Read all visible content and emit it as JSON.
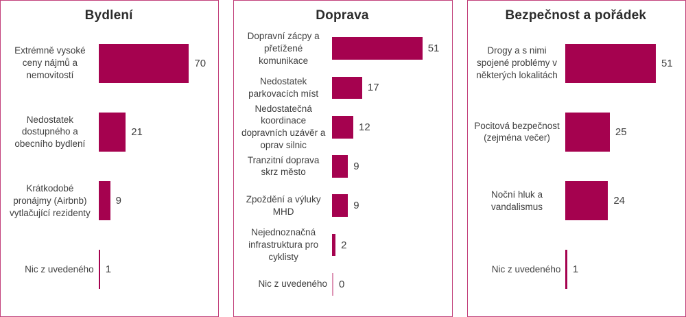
{
  "colors": {
    "bar": "#A5024F",
    "zero_bar": "#DD93B4",
    "panel_border": "#C2417B"
  },
  "chart_data": [
    {
      "type": "bar",
      "orientation": "horizontal",
      "title": "Bydlení",
      "categories": [
        "Extrémně vysoké ceny nájmů a nemovitostí",
        "Nedostatek dostupného a obecního bydlení",
        "Krátkodobé pronájmy (Airbnb) vytlačující rezidenty",
        "Nic z uvedeného"
      ],
      "values": [
        70,
        21,
        9,
        1
      ],
      "value_labels": true,
      "grid": false,
      "legend": false,
      "xlim": [
        0,
        70
      ]
    },
    {
      "type": "bar",
      "orientation": "horizontal",
      "title": "Doprava",
      "categories": [
        "Dopravní zácpy a přetížené komunikace",
        "Nedostatek parkovacích míst",
        "Nedostatečná koordinace dopravních uzávěr a oprav silnic",
        "Tranzitní doprava skrz město",
        "Zpoždění a výluky MHD",
        "Nejednoznačná infrastruktura pro cyklisty",
        "Nic z uvedeného"
      ],
      "values": [
        51,
        17,
        12,
        9,
        9,
        2,
        0
      ],
      "value_labels": true,
      "grid": false,
      "legend": false,
      "xlim": [
        0,
        51
      ]
    },
    {
      "type": "bar",
      "orientation": "horizontal",
      "title": "Bezpečnost a pořádek",
      "categories": [
        "Drogy a s nimi spojené problémy v některých lokalitách",
        "Pocitová bezpečnost (zejména večer)",
        "Noční hluk a vandalismus",
        "Nic z uvedeného"
      ],
      "values": [
        51,
        25,
        24,
        1
      ],
      "value_labels": true,
      "grid": false,
      "legend": false,
      "xlim": [
        0,
        51
      ]
    }
  ]
}
